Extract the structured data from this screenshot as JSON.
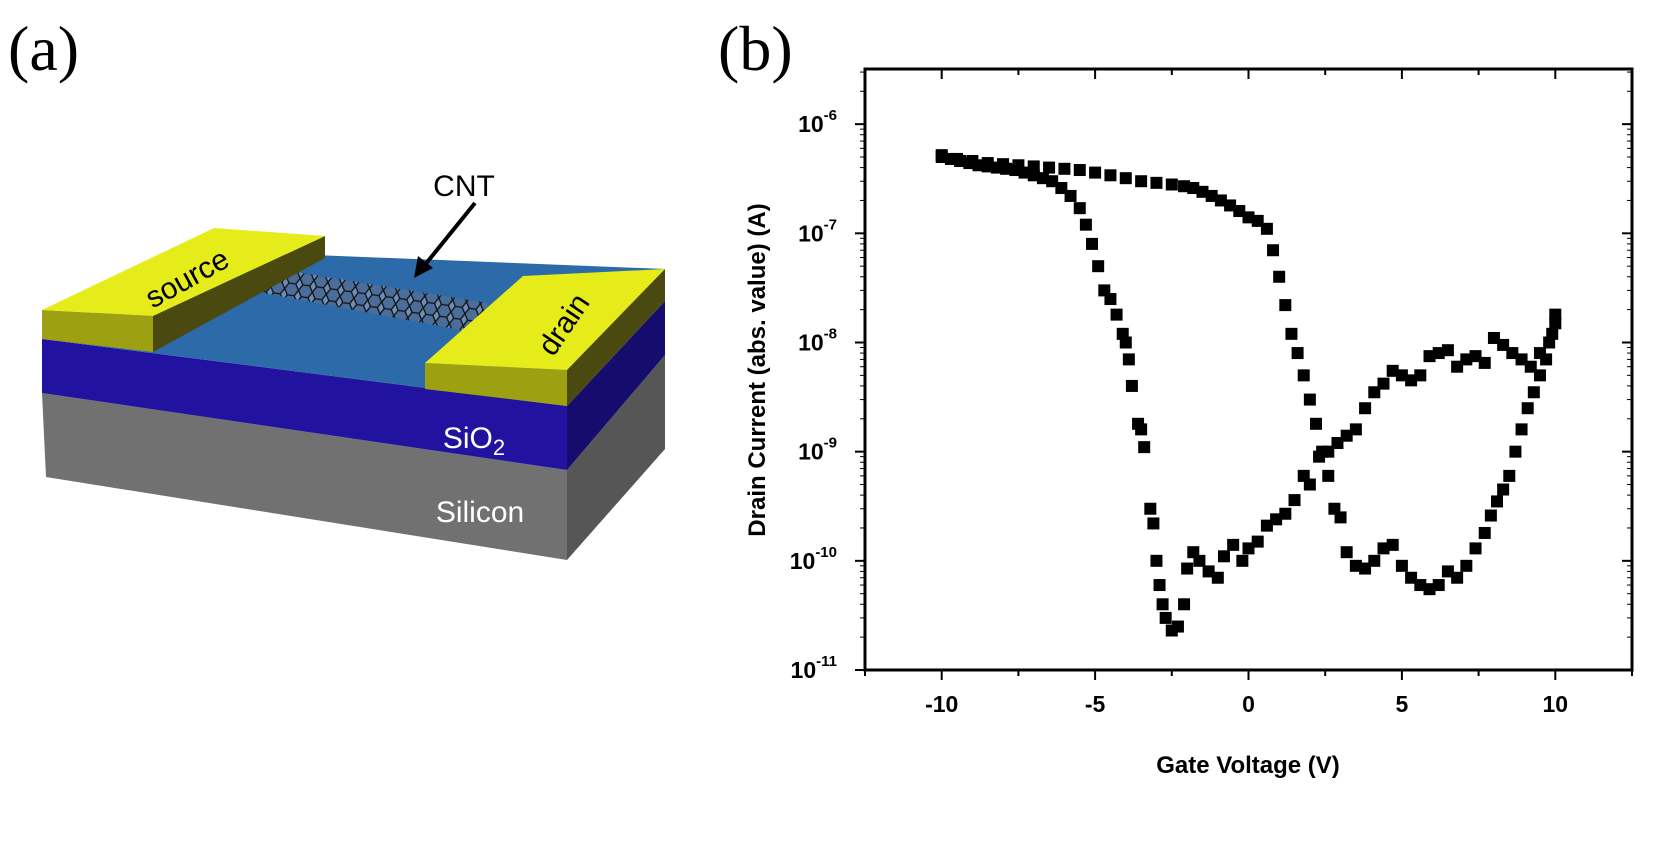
{
  "panel_a": {
    "label": "(a)",
    "cnt_label": "CNT",
    "source_label": "source",
    "drain_label": "drain",
    "oxide_label": "SiO",
    "oxide_subscript": "2",
    "substrate_label": "Silicon",
    "colors": {
      "electrode": "#e6ec1a",
      "channel": "#2d6aa9",
      "oxide": "#21129f",
      "substrate": "#717171"
    }
  },
  "chart_data": {
    "panel_label": "(b)",
    "type": "scatter",
    "xlabel": "Gate Voltage (V)",
    "ylabel": "Drain Current (abs. value) (A)",
    "xlim": [
      -12.5,
      12.5
    ],
    "ylim": [
      1e-11,
      3.2e-06
    ],
    "yscale": "log",
    "xticks": [
      "-10",
      "-5",
      "0",
      "5",
      "10"
    ],
    "xtick_values": [
      -10,
      -5,
      0,
      5,
      10
    ],
    "yticks": [
      {
        "base": "10",
        "exp": "-6",
        "value": 1e-06
      },
      {
        "base": "10",
        "exp": "-7",
        "value": 1e-07
      },
      {
        "base": "10",
        "exp": "-8",
        "value": 1e-08
      },
      {
        "base": "10",
        "exp": "-9",
        "value": 1e-09
      },
      {
        "base": "10",
        "exp": "-10",
        "value": 1e-10
      },
      {
        "base": "10",
        "exp": "-11",
        "value": 1e-11
      }
    ],
    "grid": false,
    "marker": "square",
    "color": "#000000",
    "series": [
      {
        "x": [
          -10,
          -9.7,
          -9.4,
          -9.1,
          -8.8,
          -8.5,
          -8.2,
          -7.9,
          -7.6,
          -7.3,
          -7,
          -6.7,
          -6.4,
          -6.1,
          -5.8,
          -5.5,
          -5.3,
          -5.1,
          -4.9,
          -4.7,
          -4.5,
          -4.3,
          -4.1,
          -4.0,
          -3.9,
          -3.8,
          -3.6,
          -3.5,
          -3.4,
          -3.2,
          -3.1,
          -3.0,
          -2.9,
          -2.8,
          -2.7,
          -2.5,
          -2.3,
          -2.1,
          -2.0,
          -1.8,
          -1.6,
          -1.3,
          -1.0,
          -0.8,
          -0.5,
          -0.2,
          0,
          0.3,
          0.6,
          0.9,
          1.2,
          1.5,
          1.8,
          2.0,
          2.3,
          2.6,
          2.9,
          3.2,
          3.5,
          3.8,
          4.1,
          4.4,
          4.7,
          5.0,
          5.3,
          5.6,
          5.9,
          6.2,
          6.5,
          6.8,
          7.1,
          7.4,
          7.7,
          8.0,
          8.3,
          8.6,
          8.9,
          9.2,
          9.5,
          9.8,
          10
        ],
        "y": [
          5e-07,
          4.8e-07,
          4.6e-07,
          4.4e-07,
          4.2e-07,
          4.1e-07,
          4e-07,
          3.9e-07,
          3.8e-07,
          3.6e-07,
          3.4e-07,
          3.2e-07,
          3e-07,
          2.6e-07,
          2.2e-07,
          1.7e-07,
          1.2e-07,
          8e-08,
          5e-08,
          3e-08,
          2.5e-08,
          1.8e-08,
          1.2e-08,
          1e-08,
          7e-09,
          4e-09,
          1.8e-09,
          1.6e-09,
          1.1e-09,
          3e-10,
          2.2e-10,
          1e-10,
          6e-11,
          4e-11,
          3e-11,
          2.3e-11,
          2.5e-11,
          4e-11,
          8.5e-11,
          1.2e-10,
          1e-10,
          8e-11,
          7e-11,
          1.1e-10,
          1.4e-10,
          1e-10,
          1.3e-10,
          1.5e-10,
          2.1e-10,
          2.4e-10,
          2.7e-10,
          3.6e-10,
          6e-10,
          5e-10,
          9e-10,
          1e-09,
          1.2e-09,
          1.4e-09,
          1.6e-09,
          2.5e-09,
          3.5e-09,
          4.2e-09,
          5.5e-09,
          5e-09,
          4.5e-09,
          5e-09,
          7.5e-09,
          8e-09,
          8.5e-09,
          6e-09,
          7e-09,
          7.5e-09,
          6.5e-09,
          1.1e-08,
          9.5e-09,
          8e-09,
          7e-09,
          6e-09,
          8e-09,
          1e-08,
          1.5e-08
        ]
      },
      {
        "x": [
          10,
          9.9,
          9.7,
          9.5,
          9.3,
          9.1,
          8.9,
          8.7,
          8.5,
          8.3,
          8.1,
          7.9,
          7.7,
          7.4,
          7.1,
          6.8,
          6.5,
          6.2,
          5.9,
          5.6,
          5.3,
          5.0,
          4.7,
          4.4,
          4.1,
          3.8,
          3.5,
          3.2,
          3.0,
          2.8,
          2.6,
          2.4,
          2.2,
          2.0,
          1.8,
          1.6,
          1.4,
          1.2,
          1.0,
          0.8,
          0.6,
          0.3,
          0,
          -0.3,
          -0.6,
          -0.9,
          -1.2,
          -1.5,
          -1.8,
          -2.1,
          -2.5,
          -3,
          -3.5,
          -4,
          -4.5,
          -5,
          -5.5,
          -6,
          -6.5,
          -7,
          -7.5,
          -8,
          -8.5,
          -9,
          -9.5,
          -10
        ],
        "y": [
          1.8e-08,
          1.2e-08,
          7e-09,
          5e-09,
          3.5e-09,
          2.5e-09,
          1.6e-09,
          1e-09,
          6e-10,
          4.5e-10,
          3.5e-10,
          2.6e-10,
          1.8e-10,
          1.3e-10,
          9e-11,
          7e-11,
          8e-11,
          6e-11,
          5.5e-11,
          6e-11,
          7e-11,
          9e-11,
          1.4e-10,
          1.3e-10,
          1e-10,
          8.5e-11,
          9e-11,
          1.2e-10,
          2.5e-10,
          3e-10,
          6e-10,
          1e-09,
          1.8e-09,
          3e-09,
          5e-09,
          8e-09,
          1.2e-08,
          2.2e-08,
          4e-08,
          7e-08,
          1.1e-07,
          1.3e-07,
          1.4e-07,
          1.6e-07,
          1.8e-07,
          2e-07,
          2.2e-07,
          2.4e-07,
          2.6e-07,
          2.7e-07,
          2.8e-07,
          2.9e-07,
          3e-07,
          3.2e-07,
          3.4e-07,
          3.6e-07,
          3.8e-07,
          3.9e-07,
          4e-07,
          4.1e-07,
          4.2e-07,
          4.3e-07,
          4.4e-07,
          4.6e-07,
          4.8e-07,
          5.2e-07
        ]
      }
    ]
  }
}
